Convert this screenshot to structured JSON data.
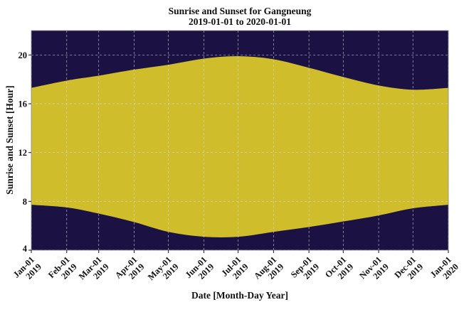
{
  "chart_data": {
    "type": "area",
    "title": "Sunrise and Sunset for Gangneung",
    "subtitle": "2019-01-01 to 2020-01-01",
    "xlabel": "Date [Month-Day Year]",
    "ylabel": "Sunrise and Sunset [Hour]",
    "ylim": [
      4,
      22
    ],
    "yticks": [
      4,
      8,
      12,
      16,
      20
    ],
    "grid": true,
    "colors": {
      "night": "#1b1142",
      "day": "#cfbd2c",
      "grid_night": "#d8d8e8",
      "grid_day": "#f0e070"
    },
    "x_labels": [
      {
        "line1": "Jan-01",
        "line2": "2019"
      },
      {
        "line1": "Feb-01",
        "line2": "2019"
      },
      {
        "line1": "Mar-01",
        "line2": "2019"
      },
      {
        "line1": "Apr-01",
        "line2": "2019"
      },
      {
        "line1": "May-01",
        "line2": "2019"
      },
      {
        "line1": "Jun-01",
        "line2": "2019"
      },
      {
        "line1": "Jul-01",
        "line2": "2019"
      },
      {
        "line1": "Aug-01",
        "line2": "2019"
      },
      {
        "line1": "Sep-01",
        "line2": "2019"
      },
      {
        "line1": "Oct-01",
        "line2": "2019"
      },
      {
        "line1": "Nov-01",
        "line2": "2019"
      },
      {
        "line1": "Dec-01",
        "line2": "2019"
      },
      {
        "line1": "Jan-01",
        "line2": "2020"
      }
    ],
    "x_days": [
      0,
      31,
      59,
      90,
      120,
      151,
      181,
      212,
      243,
      273,
      304,
      334,
      365
    ],
    "series": [
      {
        "name": "Sunrise",
        "values": [
          7.72,
          7.5,
          7.0,
          6.3,
          5.5,
          5.1,
          5.1,
          5.5,
          5.9,
          6.35,
          6.85,
          7.43,
          7.72
        ]
      },
      {
        "name": "Sunset",
        "values": [
          17.3,
          17.9,
          18.3,
          18.8,
          19.2,
          19.7,
          19.9,
          19.65,
          18.95,
          18.2,
          17.5,
          17.15,
          17.3
        ]
      }
    ]
  }
}
